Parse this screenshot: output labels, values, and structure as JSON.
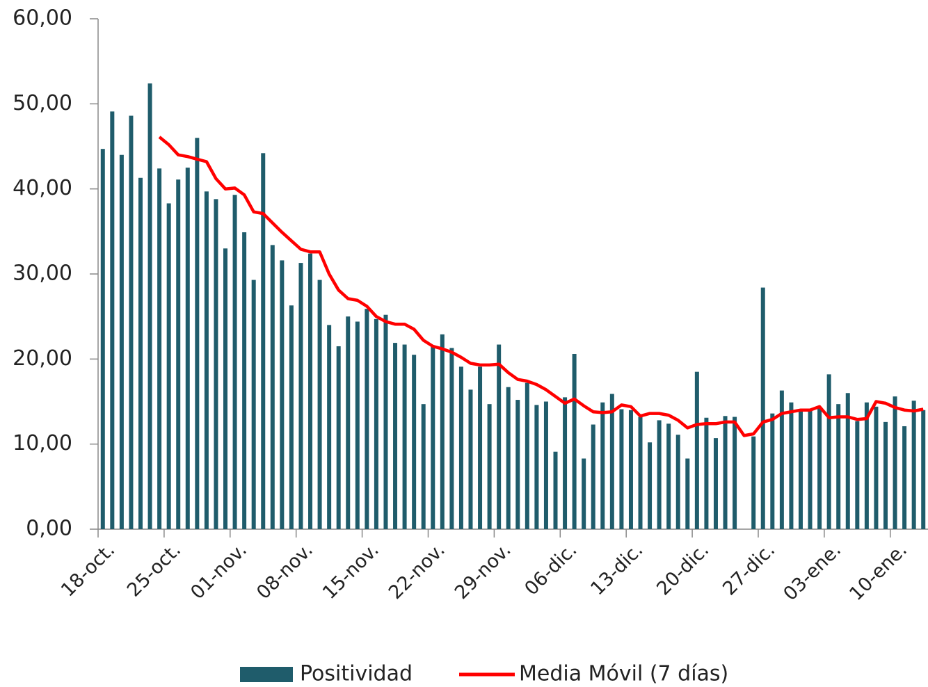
{
  "chart_data": {
    "type": "bar_line",
    "categories": [
      "18-oct.",
      null,
      null,
      null,
      null,
      null,
      null,
      "25-oct.",
      null,
      null,
      null,
      null,
      null,
      null,
      "01-nov.",
      null,
      null,
      null,
      null,
      null,
      null,
      "08-nov.",
      null,
      null,
      null,
      null,
      null,
      null,
      "15-nov.",
      null,
      null,
      null,
      null,
      null,
      null,
      "22-nov.",
      null,
      null,
      null,
      null,
      null,
      null,
      "29-nov.",
      null,
      null,
      null,
      null,
      null,
      null,
      "06-dic.",
      null,
      null,
      null,
      null,
      null,
      null,
      "13-dic.",
      null,
      null,
      null,
      null,
      null,
      null,
      "20-dic.",
      null,
      null,
      null,
      null,
      null,
      null,
      "27-dic.",
      null,
      null,
      null,
      null,
      null,
      null,
      "03-ene.",
      null,
      null,
      null,
      null,
      null,
      null,
      "10-ene.",
      null,
      null,
      null
    ],
    "series": [
      {
        "name": "Positividad",
        "color": "#1f5c6b",
        "values": [
          44.7,
          49.1,
          44.0,
          48.6,
          41.3,
          52.4,
          42.4,
          38.3,
          41.1,
          42.5,
          46.0,
          39.7,
          38.8,
          33.0,
          39.3,
          34.9,
          29.3,
          44.2,
          33.4,
          31.6,
          26.3,
          31.3,
          32.4,
          29.3,
          24.0,
          21.5,
          25.0,
          24.4,
          25.9,
          24.7,
          25.2,
          21.9,
          21.7,
          20.5,
          14.7,
          21.6,
          22.9,
          21.3,
          19.1,
          16.4,
          19.1,
          14.7,
          21.7,
          16.7,
          15.2,
          17.2,
          14.6,
          15.0,
          9.1,
          15.5,
          20.6,
          8.3,
          12.3,
          14.9,
          15.9,
          14.1,
          14.0,
          13.2,
          10.2,
          12.8,
          12.4,
          11.1,
          8.3,
          18.5,
          13.1,
          10.7,
          13.3,
          13.2,
          null,
          10.9,
          28.4,
          13.6,
          16.3,
          14.9,
          13.9,
          14.0,
          14.3,
          18.2,
          14.7,
          16.0,
          12.7,
          14.9,
          14.4,
          12.6,
          15.6,
          12.1,
          15.1,
          14.0
        ]
      },
      {
        "name": "Media Móvil (7 días)",
        "color": "#ff0000",
        "values": [
          null,
          null,
          null,
          null,
          null,
          null,
          46.1,
          45.2,
          44.0,
          43.8,
          43.5,
          43.2,
          41.2,
          40.0,
          40.1,
          39.3,
          37.3,
          37.1,
          36.0,
          34.9,
          33.9,
          32.9,
          32.6,
          32.6,
          30.0,
          28.1,
          27.1,
          26.9,
          26.2,
          25.0,
          24.4,
          24.1,
          24.1,
          23.5,
          22.2,
          21.5,
          21.2,
          20.8,
          20.2,
          19.5,
          19.3,
          19.3,
          19.4,
          18.4,
          17.6,
          17.4,
          17.0,
          16.4,
          15.6,
          14.8,
          15.3,
          14.5,
          13.8,
          13.7,
          13.8,
          14.6,
          14.4,
          13.3,
          13.6,
          13.6,
          13.4,
          12.8,
          11.9,
          12.3,
          12.4,
          12.4,
          12.6,
          12.6,
          11.0,
          11.2,
          12.6,
          12.9,
          13.6,
          13.8,
          14.0,
          14.0,
          14.4,
          13.1,
          13.2,
          13.2,
          12.9,
          13.0,
          15.0,
          14.8,
          14.3,
          14.0,
          13.9,
          14.1
        ]
      }
    ],
    "ylim": [
      0,
      60
    ],
    "yticks": [
      {
        "value": 0,
        "label": "0,00"
      },
      {
        "value": 10,
        "label": "10,00"
      },
      {
        "value": 20,
        "label": "20,00"
      },
      {
        "value": 30,
        "label": "30,00"
      },
      {
        "value": 40,
        "label": "40,00"
      },
      {
        "value": 50,
        "label": "50,00"
      },
      {
        "value": 60,
        "label": "60,00"
      }
    ],
    "legend": "bottom"
  }
}
